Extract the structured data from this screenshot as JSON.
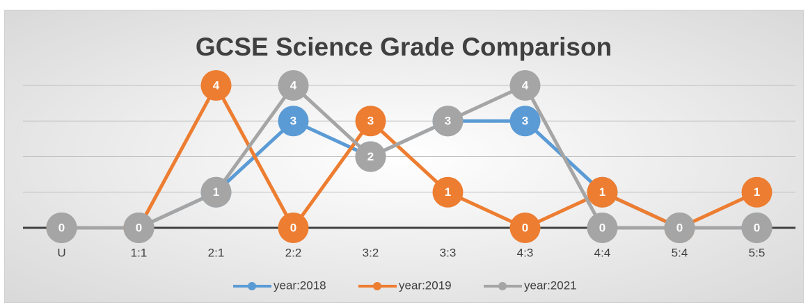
{
  "chart_data": {
    "type": "line",
    "title": "GCSE Science Grade Comparison",
    "categories": [
      "U",
      "1:1",
      "2:1",
      "2:2",
      "3:2",
      "3:3",
      "4:3",
      "4:4",
      "5:4",
      "5:5"
    ],
    "series": [
      {
        "name": "year:2018",
        "color": "#5b9bd5",
        "values": [
          0,
          0,
          1,
          3,
          2,
          3,
          3,
          1,
          0,
          0
        ]
      },
      {
        "name": "year:2019",
        "color": "#ed7d31",
        "values": [
          0,
          0,
          4,
          0,
          3,
          1,
          0,
          1,
          0,
          1
        ]
      },
      {
        "name": "year:2021",
        "color": "#a5a5a5",
        "values": [
          0,
          0,
          1,
          4,
          2,
          3,
          4,
          0,
          0,
          0
        ]
      }
    ],
    "ylim": [
      0,
      4
    ],
    "yticks": [
      0,
      1,
      2,
      3,
      4
    ],
    "grid": true,
    "show_tick_labels": false,
    "data_labels": true,
    "legend": "bottom"
  }
}
